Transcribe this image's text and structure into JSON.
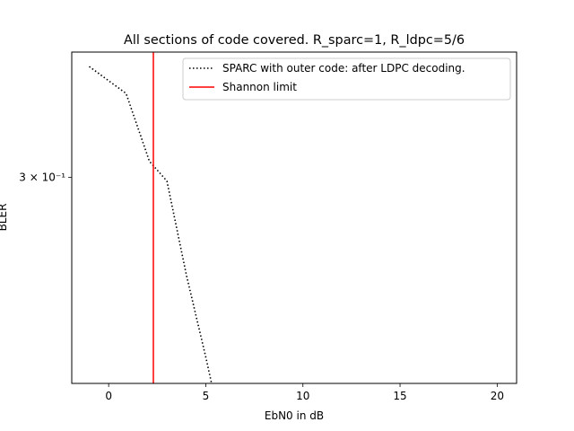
{
  "chart_data": {
    "type": "line",
    "title": "All sections of code covered. R_sparc=1, R_ldpc=5/6",
    "xlabel": "EbN0 in dB",
    "ylabel": "BLER",
    "xlim": [
      -1.9,
      21.0
    ],
    "ylim": [
      0.168,
      0.427
    ],
    "yscale": "log",
    "grid": false,
    "legend_position": "upper right",
    "x_ticks": [
      0,
      5,
      10,
      15,
      20
    ],
    "x_tick_labels": [
      "0",
      "5",
      "10",
      "15",
      "20"
    ],
    "y_ticks": [
      0.3
    ],
    "y_tick_labels": [
      "3 × 10⁻¹"
    ],
    "series": [
      {
        "name": "SPARC with outer code: after LDPC decoding.",
        "color": "#000000",
        "linestyle": "dotted",
        "x": [
          -1.0,
          0.9,
          2.1,
          3.0,
          4.0,
          5.0,
          5.3
        ],
        "y": [
          0.41,
          0.38,
          0.314,
          0.297,
          0.228,
          0.181,
          0.168
        ]
      },
      {
        "name": "Shannon limit",
        "color": "#ff0000",
        "linestyle": "solid",
        "x": [
          2.3,
          2.3
        ],
        "y": [
          0.168,
          0.427
        ]
      }
    ]
  }
}
